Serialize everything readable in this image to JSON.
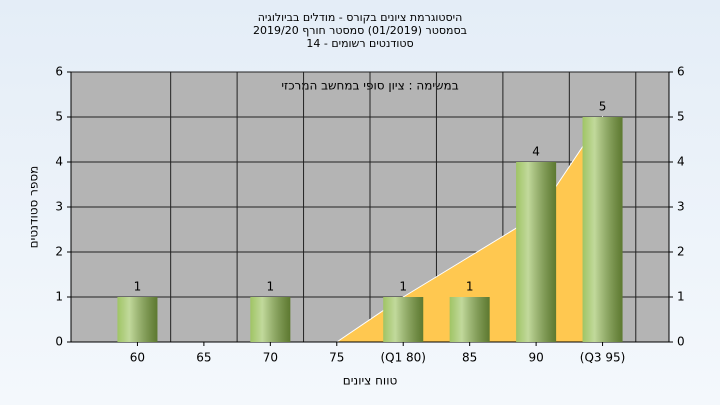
{
  "chart_data": {
    "type": "bar",
    "title": [
      "היסטוגרמת ציונים בקורס - מודלים בביולוגיה",
      "בסמסטר  (01/2019)  סמסטר חורף 2019/20",
      "סטודנטים רשומים - 14"
    ],
    "annotation": "במשימה : ציון סופי במחשב המרכזי",
    "x_label": "טווח ציונים",
    "y_label": "מספר סטודנטים",
    "categories": [
      "60",
      "65",
      "70",
      "75",
      "(Q1 80)",
      "85",
      "90",
      "(Q3 95)"
    ],
    "values": [
      1,
      0,
      1,
      0,
      1,
      1,
      4,
      5
    ],
    "color": "#8fba4a",
    "curve": {
      "values": [
        null,
        null,
        null,
        0,
        1,
        1.9,
        2.8,
        5
      ],
      "color": "#ffc850"
    },
    "ylim": [
      0,
      6
    ],
    "yticks": [
      0,
      1,
      2,
      3,
      4,
      5,
      6
    ],
    "y2lim": [
      0,
      6
    ],
    "y2ticks": [
      0,
      1,
      2,
      3,
      4,
      5,
      6
    ],
    "grid": true
  }
}
